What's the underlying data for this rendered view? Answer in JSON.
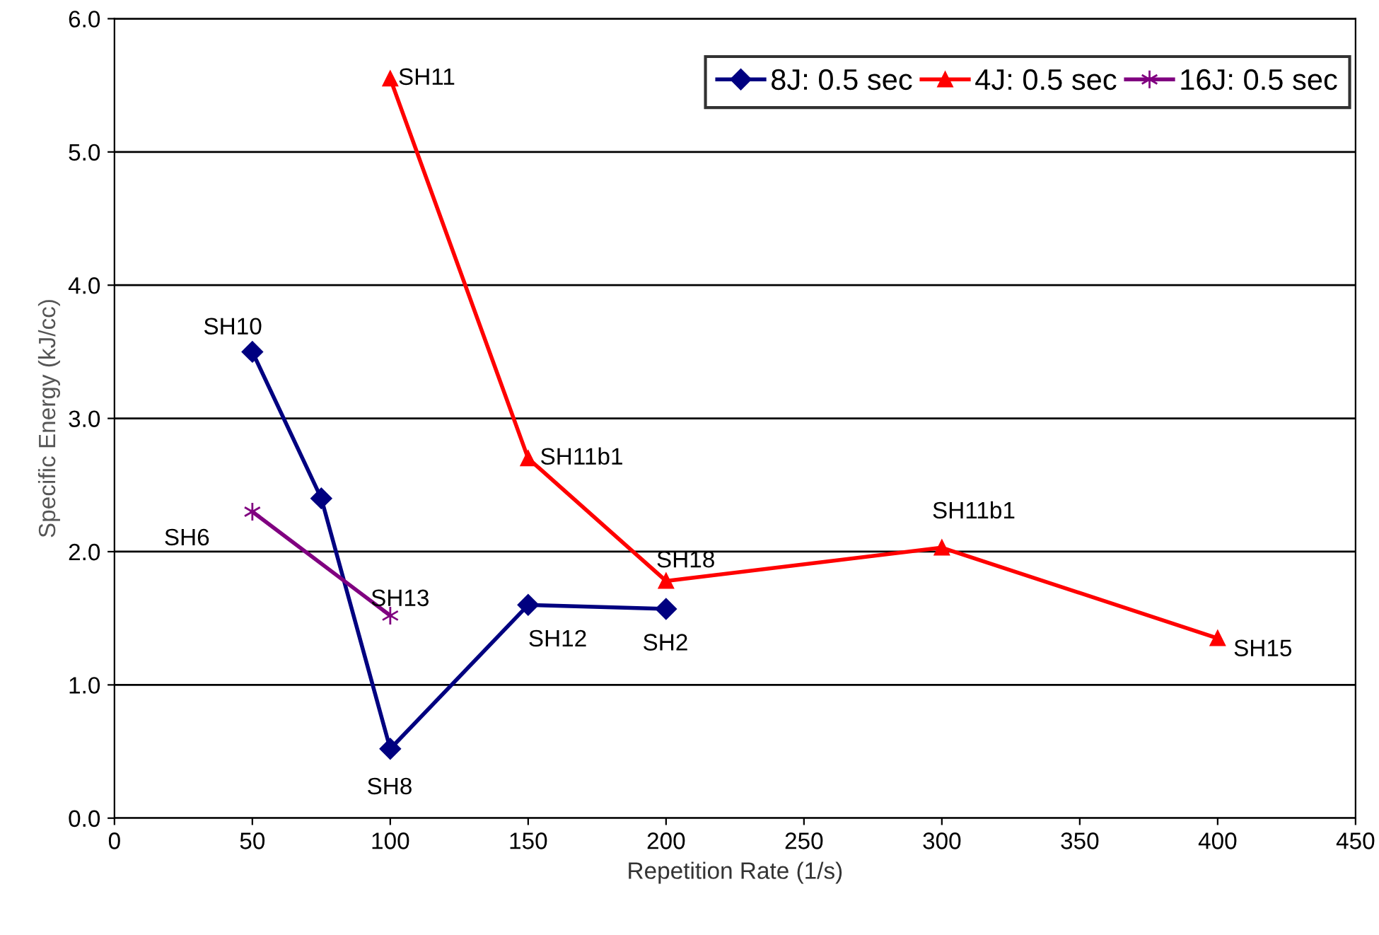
{
  "chart_data": {
    "type": "line",
    "xlabel": "Repetition Rate (1/s)",
    "ylabel": "Specific Energy (kJ/cc)",
    "xlim": [
      0,
      450
    ],
    "xticks": [
      0,
      50,
      100,
      150,
      200,
      250,
      300,
      350,
      400,
      450
    ],
    "ylim": [
      0,
      6
    ],
    "yticks": [
      {
        "value": 0,
        "label": "0.0"
      },
      {
        "value": 1,
        "label": "1.0"
      },
      {
        "value": 2,
        "label": "2.0"
      },
      {
        "value": 3,
        "label": "3.0"
      },
      {
        "value": 4,
        "label": "4.0"
      },
      {
        "value": 5,
        "label": "5.0"
      },
      {
        "value": 6,
        "label": "6.0"
      }
    ],
    "grid": "y",
    "legend": "top right",
    "line_style": "solid",
    "series": [
      {
        "name": "8J: 0.5 sec",
        "color": "#000080",
        "marker": "diamond",
        "x": [
          50,
          75,
          100,
          150,
          200
        ],
        "values": [
          3.5,
          2.4,
          0.52,
          1.6,
          1.57
        ]
      },
      {
        "name": "4J: 0.5 sec",
        "color": "#ff0000",
        "marker": "triangle",
        "x": [
          100,
          150,
          200,
          300,
          400
        ],
        "values": [
          5.55,
          2.7,
          1.78,
          2.03,
          1.35
        ]
      },
      {
        "name": "16J: 0.5 sec",
        "color": "#800080",
        "marker": "cross",
        "x": [
          50,
          100
        ],
        "values": [
          2.3,
          1.52
        ]
      }
    ],
    "annotations": [
      {
        "text": "SH10",
        "x": 50,
        "y": 3.5
      },
      {
        "text": "SH8",
        "x": 100,
        "y": 0.52
      },
      {
        "text": "SH12",
        "x": 150,
        "y": 1.6
      },
      {
        "text": "SH2",
        "x": 200,
        "y": 1.57
      },
      {
        "text": "SH11",
        "x": 100,
        "y": 5.55
      },
      {
        "text": "SH11b1",
        "x": 150,
        "y": 2.7
      },
      {
        "text": "SH18",
        "x": 200,
        "y": 1.78
      },
      {
        "text": "SH11b1",
        "x": 300,
        "y": 2.03
      },
      {
        "text": "SH15",
        "x": 400,
        "y": 1.35
      },
      {
        "text": "SH6",
        "x": 50,
        "y": 2.3
      },
      {
        "text": "SH13",
        "x": 100,
        "y": 1.52
      }
    ]
  }
}
